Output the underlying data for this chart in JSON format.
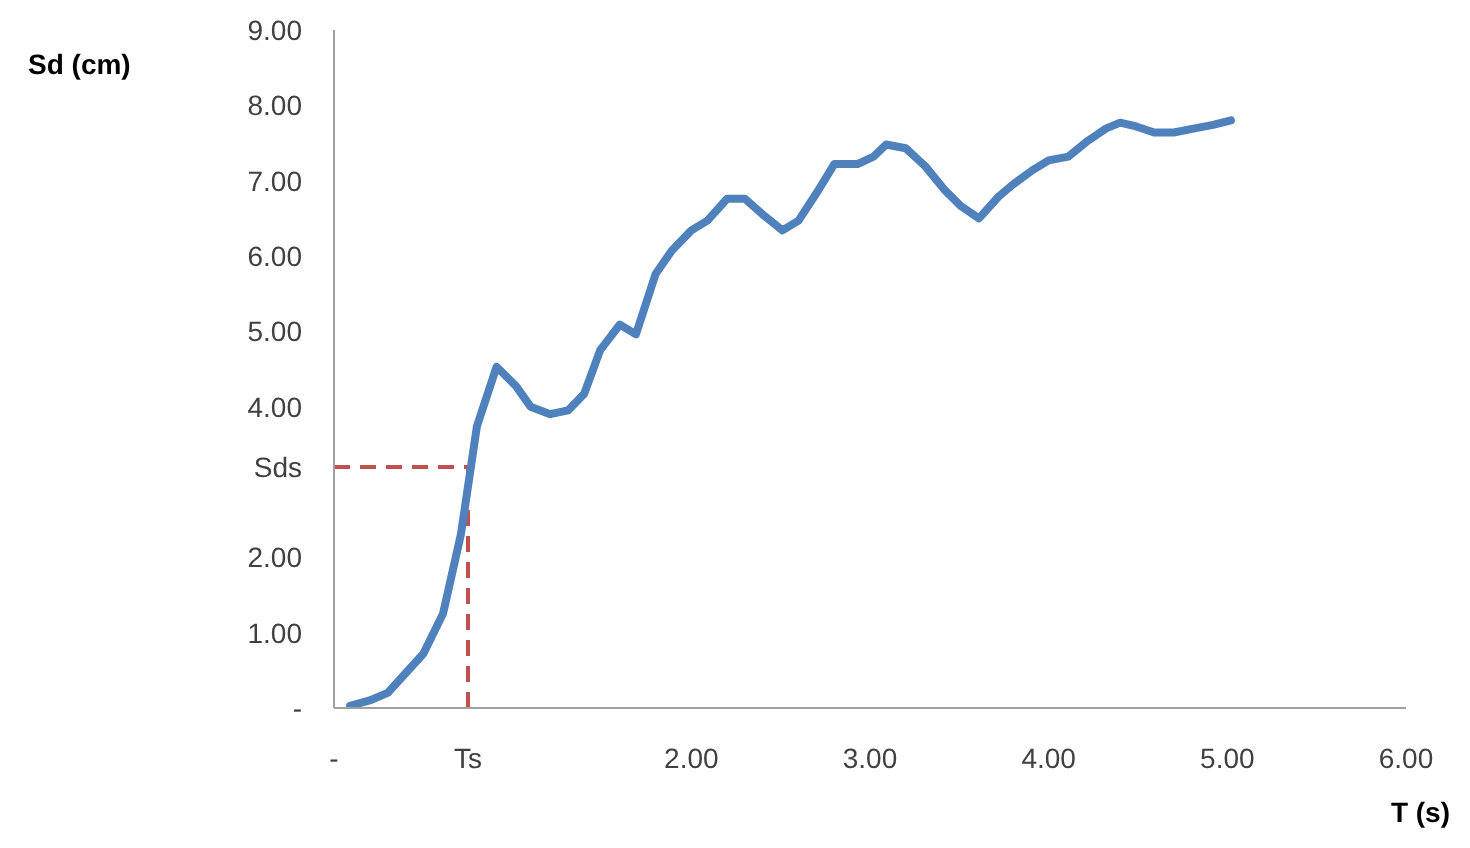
{
  "chart_data": {
    "type": "line",
    "xlabel": "T (s)",
    "ylabel": "Sd (cm)",
    "x": [
      0.09,
      0.2,
      0.3,
      0.5,
      0.61,
      0.71,
      0.8,
      0.91,
      1.02,
      1.1,
      1.21,
      1.31,
      1.4,
      1.49,
      1.6,
      1.69,
      1.8,
      1.89,
      2.0,
      2.09,
      2.2,
      2.3,
      2.4,
      2.51,
      2.6,
      2.71,
      2.8,
      2.93,
      3.02,
      3.09,
      3.2,
      3.31,
      3.42,
      3.51,
      3.61,
      3.72,
      3.8,
      3.91,
      4.0,
      4.11,
      4.22,
      4.32,
      4.4,
      4.49,
      4.59,
      4.7,
      4.81,
      4.92,
      5.02
    ],
    "series": [
      {
        "color": "#4f81bd",
        "values": [
          0.03,
          0.1,
          0.2,
          0.72,
          1.25,
          2.3,
          3.74,
          4.53,
          4.27,
          4.0,
          3.9,
          3.95,
          4.17,
          4.75,
          5.09,
          4.96,
          5.76,
          6.07,
          6.34,
          6.47,
          6.76,
          6.76,
          6.55,
          6.34,
          6.47,
          6.87,
          7.22,
          7.22,
          7.32,
          7.48,
          7.43,
          7.19,
          6.87,
          6.66,
          6.5,
          6.79,
          6.95,
          7.14,
          7.27,
          7.32,
          7.53,
          7.69,
          7.77,
          7.72,
          7.64,
          7.64,
          7.69,
          7.74,
          7.8
        ]
      }
    ],
    "xlim": [
      0,
      6
    ],
    "ylim": [
      0,
      9
    ],
    "xticks": [
      {
        "value": 0,
        "label": "-"
      },
      {
        "value": 0.75,
        "label": "Ts"
      },
      {
        "value": 2,
        "label": "2.00"
      },
      {
        "value": 3,
        "label": "3.00"
      },
      {
        "value": 4,
        "label": "4.00"
      },
      {
        "value": 5,
        "label": "5.00"
      },
      {
        "value": 6,
        "label": "6.00"
      }
    ],
    "yticks": [
      {
        "value": 0,
        "label": "-"
      },
      {
        "value": 1,
        "label": "1.00"
      },
      {
        "value": 2,
        "label": "2.00"
      },
      {
        "value": 3.2,
        "label": "Sds"
      },
      {
        "value": 4,
        "label": "4.00"
      },
      {
        "value": 5,
        "label": "5.00"
      },
      {
        "value": 6,
        "label": "6.00"
      },
      {
        "value": 7,
        "label": "7.00"
      },
      {
        "value": 8,
        "label": "8.00"
      },
      {
        "value": 9,
        "label": "9.00"
      }
    ],
    "ref_lines": [
      {
        "axis": "x",
        "value": 0.75,
        "color": "#c0504d",
        "line_style": "dashed"
      },
      {
        "axis": "y",
        "value": 3.2,
        "color": "#c0504d",
        "line_style": "dashed"
      }
    ],
    "grid": false,
    "legend": false,
    "marker": "none",
    "line_style": "solid"
  }
}
